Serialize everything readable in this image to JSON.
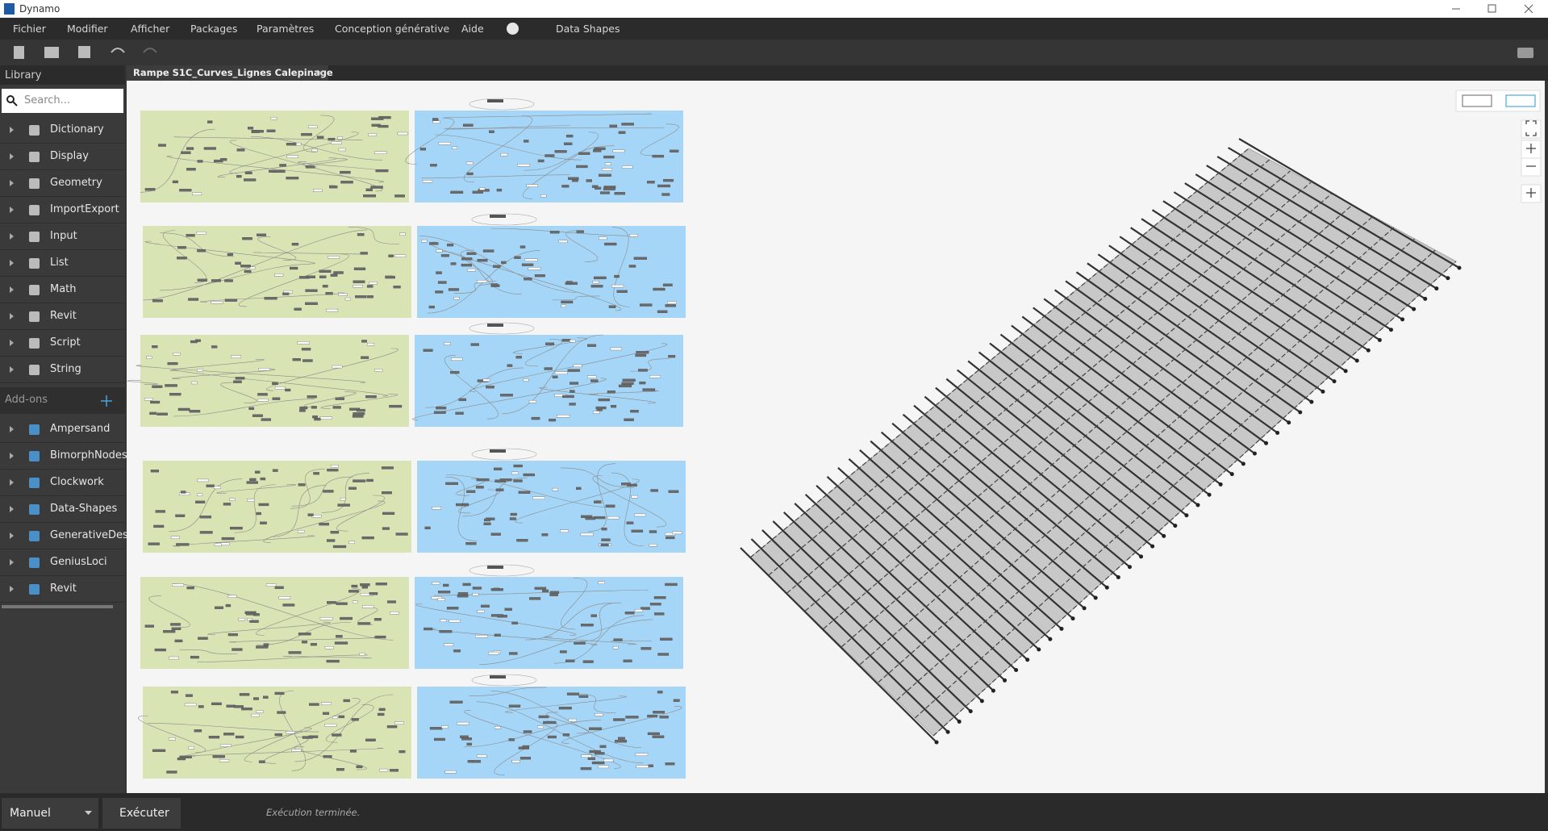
{
  "window": {
    "title": "Dynamo"
  },
  "menu": [
    "Fichier",
    "Modifier",
    "Afficher",
    "Packages",
    "Paramètres",
    "Conception générative",
    "Aide",
    "Data Shapes"
  ],
  "library": {
    "title": "Library",
    "search_placeholder": "Search...",
    "items": [
      "Dictionary",
      "Display",
      "Geometry",
      "ImportExport",
      "Input",
      "List",
      "Math",
      "Revit",
      "Script",
      "String"
    ],
    "addons_title": "Add-ons",
    "addons": [
      "Ampersand",
      "BimorphNodes",
      "Clockwork",
      "Data-Shapes",
      "GenerativeDesi",
      "GeniusLoci",
      "Revit"
    ]
  },
  "tab": {
    "title": "Rampe S1C_Curves_Lignes Calepinage"
  },
  "footer": {
    "run_mode": "Manuel",
    "run_button": "Exécuter",
    "status": "Exécution terminée."
  }
}
